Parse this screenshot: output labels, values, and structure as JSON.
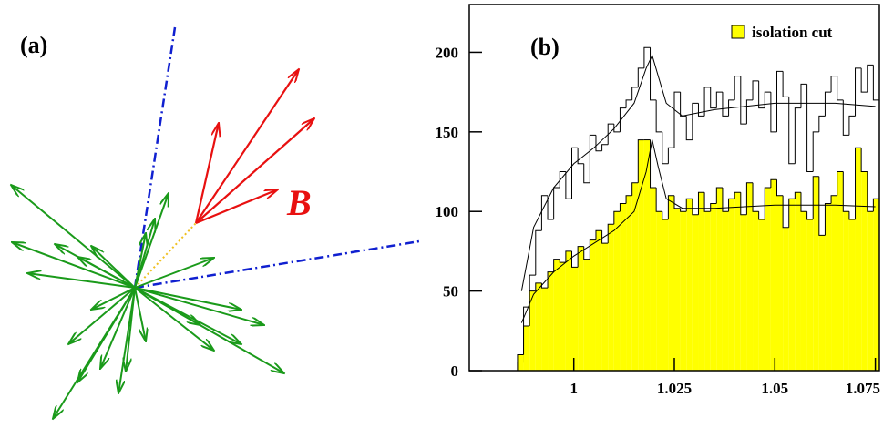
{
  "diagram": {
    "label": "(a)",
    "annotation": "B"
  },
  "chart_data": {
    "type": "histogram",
    "label": "(b)",
    "bins": [
      0.986,
      0.9875,
      0.989,
      0.9905,
      0.992,
      0.9935,
      0.995,
      0.9965,
      0.998,
      0.9995,
      1.001,
      1.0025,
      1.004,
      1.0055,
      1.007,
      1.0085,
      1.01,
      1.0115,
      1.013,
      1.0145,
      1.016,
      1.0175,
      1.019,
      1.0205,
      1.022,
      1.0235,
      1.025,
      1.0265,
      1.028,
      1.0295,
      1.031,
      1.0325,
      1.034,
      1.0355,
      1.037,
      1.0385,
      1.04,
      1.0415,
      1.043,
      1.0445,
      1.046,
      1.0475,
      1.049,
      1.0505,
      1.052,
      1.0535,
      1.055,
      1.0565,
      1.058,
      1.0595,
      1.061,
      1.0625,
      1.064,
      1.0655,
      1.067,
      1.0685,
      1.07,
      1.0715,
      1.073,
      1.0745,
      1.076
    ],
    "series": [
      {
        "color": "none",
        "values": [
          5,
          40,
          60,
          88,
          110,
          95,
          115,
          125,
          108,
          140,
          130,
          118,
          148,
          138,
          142,
          155,
          150,
          165,
          170,
          178,
          190,
          203,
          170,
          150,
          130,
          140,
          175,
          160,
          145,
          168,
          160,
          178,
          165,
          175,
          160,
          170,
          185,
          155,
          170,
          182,
          165,
          175,
          150,
          188,
          172,
          130,
          165,
          180,
          125,
          150,
          160,
          175,
          185,
          170,
          148,
          160,
          190,
          175,
          192,
          170
        ]
      },
      {
        "name": "isolation cut",
        "color": "#ffff00",
        "values": [
          10,
          28,
          50,
          55,
          52,
          62,
          70,
          68,
          75,
          65,
          78,
          70,
          82,
          88,
          80,
          92,
          100,
          105,
          110,
          118,
          145,
          145,
          115,
          100,
          95,
          110,
          102,
          100,
          108,
          98,
          112,
          100,
          105,
          115,
          100,
          108,
          112,
          98,
          118,
          100,
          95,
          115,
          120,
          110,
          90,
          108,
          112,
          100,
          95,
          122,
          85,
          105,
          110,
          125,
          100,
          95,
          140,
          125,
          100,
          108
        ]
      }
    ],
    "fits": [
      {
        "x": [
          0.987,
          0.99,
          0.995,
          1.0,
          1.005,
          1.01,
          1.015,
          1.018,
          1.0195,
          1.021,
          1.023,
          1.027,
          1.035,
          1.05,
          1.065,
          1.075
        ],
        "values": [
          50,
          90,
          115,
          130,
          140,
          152,
          168,
          190,
          198,
          185,
          168,
          160,
          164,
          168,
          168,
          166
        ]
      },
      {
        "x": [
          0.987,
          0.99,
          0.995,
          1.0,
          1.005,
          1.01,
          1.015,
          1.018,
          1.0195,
          1.021,
          1.023,
          1.027,
          1.035,
          1.05,
          1.065,
          1.075
        ],
        "values": [
          30,
          48,
          62,
          72,
          80,
          88,
          100,
          125,
          145,
          128,
          108,
          102,
          102,
          104,
          104,
          103
        ]
      }
    ],
    "xlim": [
      0.974,
      1.076
    ],
    "ylim": [
      0,
      230
    ],
    "xticks": [
      1,
      1.025,
      1.05,
      1.075
    ],
    "yticks": [
      0,
      50,
      100,
      150,
      200
    ],
    "legend": "top-right"
  }
}
